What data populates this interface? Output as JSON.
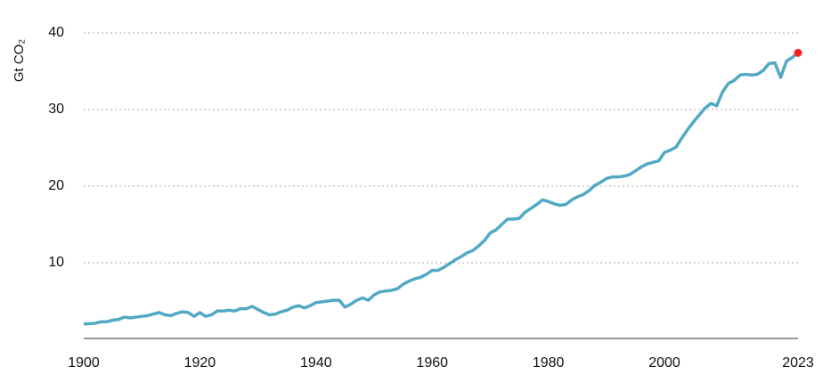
{
  "chart_data": {
    "type": "line",
    "ylabel": "Gt CO₂",
    "x": [
      1900,
      1901,
      1902,
      1903,
      1904,
      1905,
      1906,
      1907,
      1908,
      1909,
      1910,
      1911,
      1912,
      1913,
      1914,
      1915,
      1916,
      1917,
      1918,
      1919,
      1920,
      1921,
      1922,
      1923,
      1924,
      1925,
      1926,
      1927,
      1928,
      1929,
      1930,
      1931,
      1932,
      1933,
      1934,
      1935,
      1936,
      1937,
      1938,
      1939,
      1940,
      1941,
      1942,
      1943,
      1944,
      1945,
      1946,
      1947,
      1948,
      1949,
      1950,
      1951,
      1952,
      1953,
      1954,
      1955,
      1956,
      1957,
      1958,
      1959,
      1960,
      1961,
      1962,
      1963,
      1964,
      1965,
      1966,
      1967,
      1968,
      1969,
      1970,
      1971,
      1972,
      1973,
      1974,
      1975,
      1976,
      1977,
      1978,
      1979,
      1980,
      1981,
      1982,
      1983,
      1984,
      1985,
      1986,
      1987,
      1988,
      1989,
      1990,
      1991,
      1992,
      1993,
      1994,
      1995,
      1996,
      1997,
      1998,
      1999,
      2000,
      2001,
      2002,
      2003,
      2004,
      2005,
      2006,
      2007,
      2008,
      2009,
      2010,
      2011,
      2012,
      2013,
      2014,
      2015,
      2016,
      2017,
      2018,
      2019,
      2020,
      2021,
      2022,
      2023
    ],
    "series": [
      {
        "color": "#52a9c4",
        "marker_color": "#ff1f1f",
        "values": [
          2.0,
          2.05,
          2.1,
          2.3,
          2.3,
          2.5,
          2.6,
          2.9,
          2.8,
          2.9,
          3.0,
          3.1,
          3.3,
          3.5,
          3.2,
          3.1,
          3.4,
          3.6,
          3.5,
          3.0,
          3.5,
          3.0,
          3.2,
          3.7,
          3.7,
          3.8,
          3.7,
          4.0,
          4.0,
          4.3,
          3.9,
          3.5,
          3.2,
          3.3,
          3.6,
          3.8,
          4.2,
          4.4,
          4.1,
          4.4,
          4.8,
          4.9,
          5.0,
          5.1,
          5.1,
          4.2,
          4.6,
          5.1,
          5.4,
          5.1,
          5.8,
          6.2,
          6.3,
          6.4,
          6.6,
          7.2,
          7.6,
          7.9,
          8.1,
          8.5,
          9.0,
          9.0,
          9.4,
          9.9,
          10.4,
          10.8,
          11.3,
          11.6,
          12.2,
          12.9,
          13.9,
          14.3,
          15.0,
          15.7,
          15.7,
          15.8,
          16.6,
          17.1,
          17.6,
          18.2,
          18.0,
          17.7,
          17.5,
          17.6,
          18.2,
          18.6,
          18.9,
          19.4,
          20.1,
          20.5,
          21.0,
          21.2,
          21.2,
          21.3,
          21.5,
          22.0,
          22.5,
          22.9,
          23.1,
          23.3,
          24.4,
          24.7,
          25.1,
          26.3,
          27.4,
          28.4,
          29.3,
          30.2,
          30.8,
          30.5,
          32.3,
          33.4,
          33.8,
          34.5,
          34.6,
          34.5,
          34.6,
          35.1,
          36.0,
          36.1,
          34.2,
          36.3,
          36.8,
          37.4
        ]
      }
    ],
    "xlim": [
      1900,
      2023
    ],
    "xticks": [
      1900,
      1920,
      1940,
      1960,
      1980,
      2000,
      2023
    ],
    "ylim": [
      0,
      40
    ],
    "yticks": [
      10,
      20,
      30,
      40
    ],
    "grid": true
  }
}
